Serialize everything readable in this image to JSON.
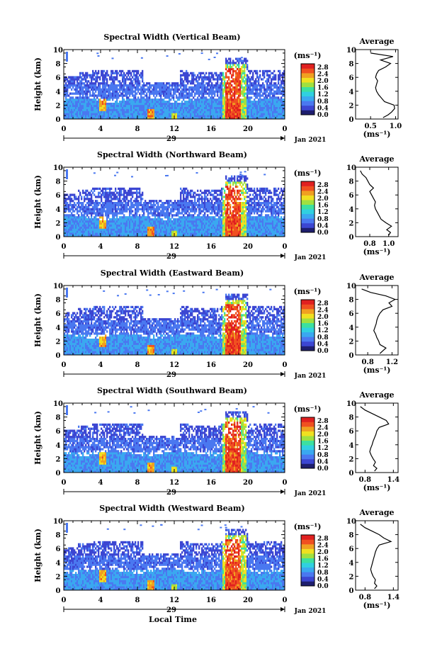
{
  "figure": {
    "common": {
      "ylabel": "Height (km)",
      "units_label": "(ms⁻¹)",
      "date_label": "Jan 2021",
      "xlabel": "Local Time",
      "x_ticks": [
        "0",
        "4",
        "8",
        "12",
        "16",
        "20",
        "0"
      ],
      "y_ticks": [
        "0",
        "2",
        "4",
        "6",
        "8",
        "10"
      ],
      "colorbar_ticks": [
        "0.0",
        "0.4",
        "0.8",
        "1.2",
        "1.6",
        "2.0",
        "2.4",
        "2.8"
      ],
      "avg_title": "Average",
      "avg_units": "(ms⁻¹)"
    },
    "colors": {
      "colorbar": [
        "#1e1e6e",
        "#3c46d2",
        "#4a78f0",
        "#3aa8f0",
        "#30d0e0",
        "#3ce0a0",
        "#a0e040",
        "#f0e020",
        "#f0a020",
        "#f05020",
        "#e02020"
      ]
    }
  },
  "chart_data": [
    {
      "type": "heatmap",
      "title": "Spectral Width (Vertical Beam)",
      "day_label": "29",
      "avg_x_ticks": [
        "0.5",
        "1.0"
      ],
      "avg_xlim": [
        0.2,
        1.05
      ],
      "avg_profile": {
        "height_km": [
          0.2,
          0.6,
          1.0,
          1.5,
          2.0,
          2.5,
          3.0,
          3.5,
          4.0,
          4.5,
          5.0,
          5.5,
          6.0,
          6.5,
          7.0,
          7.5,
          8.0,
          8.5,
          9.0,
          9.5
        ],
        "width_ms": [
          0.75,
          0.85,
          0.92,
          0.98,
          0.97,
          0.78,
          0.72,
          0.66,
          0.62,
          0.6,
          0.62,
          0.64,
          0.6,
          0.62,
          0.66,
          0.8,
          0.9,
          0.7,
          0.95,
          0.5
        ]
      }
    },
    {
      "type": "heatmap",
      "title": "Spectral Width (Northward Beam)",
      "day_label": "29",
      "avg_x_ticks": [
        "0.8",
        "1.0"
      ],
      "avg_xlim": [
        0.65,
        1.1
      ],
      "avg_profile": {
        "height_km": [
          0.2,
          0.6,
          1.0,
          1.5,
          2.0,
          2.5,
          3.0,
          3.5,
          4.0,
          4.5,
          5.0,
          5.5,
          6.0,
          6.5,
          7.0,
          7.5,
          8.0,
          8.5,
          9.0,
          9.5
        ],
        "width_ms": [
          1.0,
          1.02,
          0.98,
          1.03,
          0.97,
          0.92,
          0.9,
          0.88,
          0.86,
          0.85,
          0.86,
          0.84,
          0.82,
          0.8,
          0.84,
          0.8,
          0.78,
          0.76,
          0.72,
          0.7
        ]
      }
    },
    {
      "type": "heatmap",
      "title": "Spectral Width (Eastward Beam)",
      "day_label": "29",
      "avg_x_ticks": [
        "0.8",
        "1.2"
      ],
      "avg_xlim": [
        0.6,
        1.3
      ],
      "avg_profile": {
        "height_km": [
          0.2,
          0.6,
          1.0,
          1.5,
          2.0,
          2.5,
          3.0,
          3.5,
          4.0,
          4.5,
          5.0,
          5.5,
          6.0,
          6.5,
          7.0,
          7.5,
          8.0,
          8.5,
          9.0,
          9.5
        ],
        "width_ms": [
          1.0,
          1.05,
          1.1,
          1.0,
          0.98,
          0.95,
          0.93,
          0.9,
          0.92,
          0.94,
          0.95,
          0.97,
          1.0,
          1.05,
          1.2,
          1.15,
          1.25,
          1.1,
          0.85,
          0.7
        ]
      }
    },
    {
      "type": "heatmap",
      "title": "Spectral Width (Southward Beam)",
      "day_label": "29",
      "avg_x_ticks": [
        "0.8",
        "1.4"
      ],
      "avg_xlim": [
        0.6,
        1.5
      ],
      "avg_profile": {
        "height_km": [
          0.2,
          0.6,
          1.0,
          1.5,
          2.0,
          2.5,
          3.0,
          3.5,
          4.0,
          4.5,
          5.0,
          5.5,
          6.0,
          6.5,
          7.0,
          7.5,
          8.0,
          8.5,
          9.0,
          9.5
        ],
        "width_ms": [
          1.0,
          1.05,
          0.98,
          1.02,
          0.97,
          0.93,
          0.9,
          0.92,
          0.95,
          0.97,
          1.0,
          1.03,
          1.05,
          1.1,
          1.3,
          1.25,
          1.1,
          0.95,
          0.8,
          0.7
        ]
      }
    },
    {
      "type": "heatmap",
      "title": "Spectral Width (Westward Beam)",
      "day_label": "29",
      "avg_x_ticks": [
        "0.8",
        "1.4"
      ],
      "avg_xlim": [
        0.6,
        1.5
      ],
      "avg_profile": {
        "height_km": [
          0.2,
          0.6,
          1.0,
          1.5,
          2.0,
          2.5,
          3.0,
          3.5,
          4.0,
          4.5,
          5.0,
          5.5,
          6.0,
          6.5,
          7.0,
          7.5,
          8.0,
          8.5,
          9.0,
          9.5
        ],
        "width_ms": [
          1.0,
          1.05,
          1.0,
          1.02,
          0.97,
          0.94,
          0.92,
          0.94,
          0.96,
          0.98,
          1.0,
          1.02,
          1.05,
          1.1,
          1.35,
          1.2,
          1.1,
          0.95,
          0.8,
          0.7
        ]
      }
    }
  ]
}
